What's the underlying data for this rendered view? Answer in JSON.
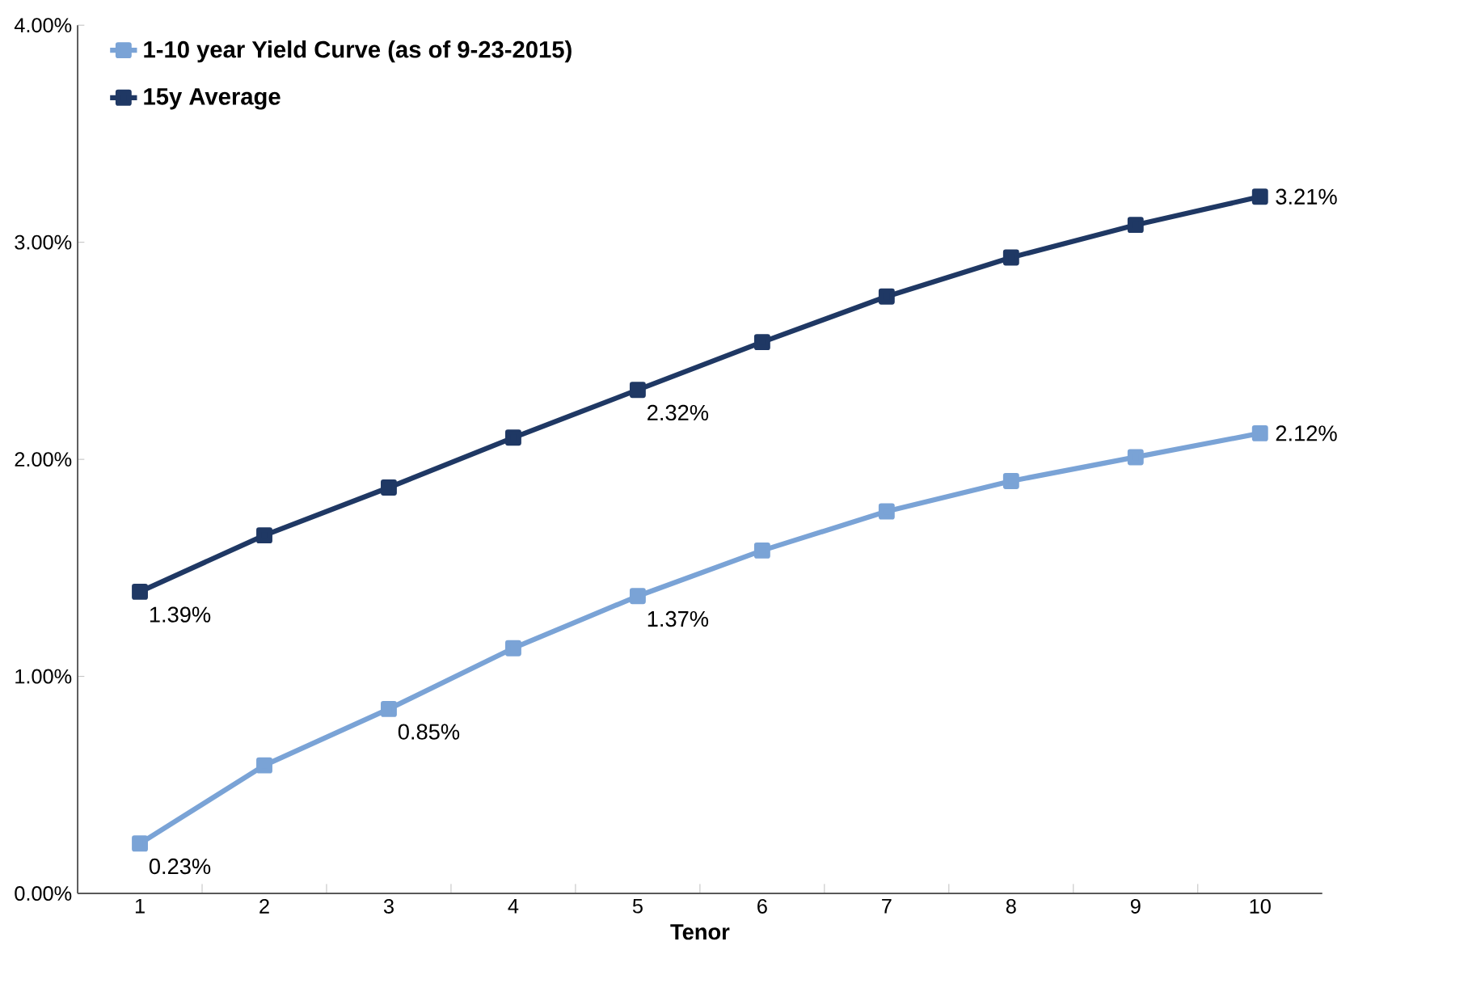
{
  "chart_data": {
    "type": "line",
    "xlabel": "Tenor",
    "categories": [
      "1",
      "2",
      "3",
      "4",
      "5",
      "6",
      "7",
      "8",
      "9",
      "10"
    ],
    "series": [
      {
        "name": "1-10 year Yield Curve (as of 9-23-2015)",
        "color": "#7aa3d6",
        "values": [
          0.23,
          0.59,
          0.85,
          1.13,
          1.37,
          1.58,
          1.76,
          1.9,
          2.01,
          2.12
        ],
        "value_labels": [
          "0.23%",
          null,
          "0.85%",
          null,
          "1.37%",
          null,
          null,
          null,
          null,
          "2.12%"
        ]
      },
      {
        "name": "15y Average",
        "color": "#1f3864",
        "values": [
          1.39,
          1.65,
          1.87,
          2.1,
          2.32,
          2.54,
          2.75,
          2.93,
          3.08,
          3.21
        ],
        "value_labels": [
          "1.39%",
          null,
          null,
          null,
          "2.32%",
          null,
          null,
          null,
          null,
          "3.21%"
        ]
      }
    ],
    "ylim": [
      0,
      4
    ],
    "yticks": [
      {
        "value": 0,
        "label": "0.00%"
      },
      {
        "value": 1,
        "label": "1.00%"
      },
      {
        "value": 2,
        "label": "2.00%"
      },
      {
        "value": 3,
        "label": "3.00%"
      },
      {
        "value": 4,
        "label": "4.00%"
      }
    ],
    "marker": "square",
    "line_style": "solid",
    "grid": false,
    "legend": "top left"
  }
}
